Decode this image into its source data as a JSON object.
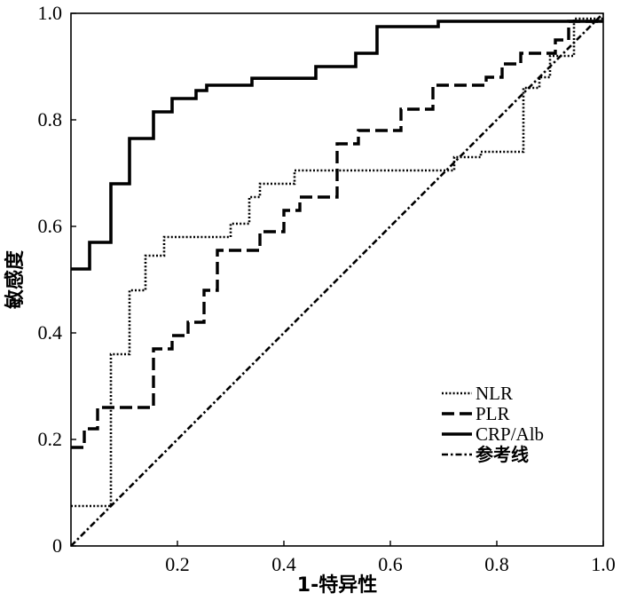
{
  "chart_data": {
    "type": "line",
    "title": "",
    "xlabel": "1-特异性",
    "ylabel": "敏感度",
    "xlim": [
      0,
      1
    ],
    "ylim": [
      0,
      1
    ],
    "x_ticks": [
      "0.2",
      "0.4",
      "0.6",
      "0.8",
      "1.0"
    ],
    "y_ticks": [
      "0",
      "0.2",
      "0.4",
      "0.6",
      "0.8",
      "1.0"
    ],
    "grid": false,
    "legend_position": "bottom-right",
    "series": [
      {
        "name": "NLR",
        "style": "dotted",
        "color": "#000000",
        "points": [
          [
            0,
            0.075
          ],
          [
            0.075,
            0.075
          ],
          [
            0.075,
            0.36
          ],
          [
            0.11,
            0.36
          ],
          [
            0.11,
            0.48
          ],
          [
            0.14,
            0.48
          ],
          [
            0.14,
            0.545
          ],
          [
            0.175,
            0.545
          ],
          [
            0.175,
            0.58
          ],
          [
            0.3,
            0.58
          ],
          [
            0.3,
            0.605
          ],
          [
            0.335,
            0.605
          ],
          [
            0.335,
            0.655
          ],
          [
            0.355,
            0.655
          ],
          [
            0.355,
            0.68
          ],
          [
            0.42,
            0.68
          ],
          [
            0.42,
            0.705
          ],
          [
            0.72,
            0.705
          ],
          [
            0.72,
            0.73
          ],
          [
            0.77,
            0.73
          ],
          [
            0.77,
            0.74
          ],
          [
            0.85,
            0.74
          ],
          [
            0.85,
            0.86
          ],
          [
            0.88,
            0.86
          ],
          [
            0.88,
            0.88
          ],
          [
            0.9,
            0.88
          ],
          [
            0.9,
            0.92
          ],
          [
            0.945,
            0.92
          ],
          [
            0.945,
            0.99
          ],
          [
            1.0,
            0.99
          ]
        ]
      },
      {
        "name": "PLR",
        "style": "dashed",
        "color": "#000000",
        "points": [
          [
            0,
            0.185
          ],
          [
            0.025,
            0.185
          ],
          [
            0.025,
            0.22
          ],
          [
            0.05,
            0.22
          ],
          [
            0.05,
            0.26
          ],
          [
            0.155,
            0.26
          ],
          [
            0.155,
            0.37
          ],
          [
            0.19,
            0.37
          ],
          [
            0.19,
            0.395
          ],
          [
            0.22,
            0.395
          ],
          [
            0.22,
            0.42
          ],
          [
            0.25,
            0.42
          ],
          [
            0.25,
            0.48
          ],
          [
            0.275,
            0.48
          ],
          [
            0.275,
            0.555
          ],
          [
            0.355,
            0.555
          ],
          [
            0.355,
            0.59
          ],
          [
            0.4,
            0.59
          ],
          [
            0.4,
            0.63
          ],
          [
            0.43,
            0.63
          ],
          [
            0.43,
            0.655
          ],
          [
            0.5,
            0.655
          ],
          [
            0.5,
            0.755
          ],
          [
            0.54,
            0.755
          ],
          [
            0.54,
            0.78
          ],
          [
            0.62,
            0.78
          ],
          [
            0.62,
            0.82
          ],
          [
            0.68,
            0.82
          ],
          [
            0.68,
            0.865
          ],
          [
            0.78,
            0.865
          ],
          [
            0.78,
            0.88
          ],
          [
            0.81,
            0.88
          ],
          [
            0.81,
            0.905
          ],
          [
            0.845,
            0.905
          ],
          [
            0.845,
            0.925
          ],
          [
            0.91,
            0.925
          ],
          [
            0.91,
            0.95
          ],
          [
            0.935,
            0.95
          ],
          [
            0.935,
            0.985
          ],
          [
            1.0,
            0.985
          ]
        ]
      },
      {
        "name": "CRP/Alb",
        "style": "solid",
        "color": "#000000",
        "points": [
          [
            0,
            0.52
          ],
          [
            0.035,
            0.52
          ],
          [
            0.035,
            0.57
          ],
          [
            0.075,
            0.57
          ],
          [
            0.075,
            0.68
          ],
          [
            0.11,
            0.68
          ],
          [
            0.11,
            0.765
          ],
          [
            0.155,
            0.765
          ],
          [
            0.155,
            0.815
          ],
          [
            0.19,
            0.815
          ],
          [
            0.19,
            0.84
          ],
          [
            0.235,
            0.84
          ],
          [
            0.235,
            0.855
          ],
          [
            0.255,
            0.855
          ],
          [
            0.255,
            0.865
          ],
          [
            0.34,
            0.865
          ],
          [
            0.34,
            0.878
          ],
          [
            0.46,
            0.878
          ],
          [
            0.46,
            0.9
          ],
          [
            0.535,
            0.9
          ],
          [
            0.535,
            0.925
          ],
          [
            0.575,
            0.925
          ],
          [
            0.575,
            0.975
          ],
          [
            0.69,
            0.975
          ],
          [
            0.69,
            0.985
          ],
          [
            1.0,
            0.985
          ]
        ]
      },
      {
        "name": "参考线",
        "style": "dash-dot",
        "color": "#000000",
        "points": [
          [
            0,
            0
          ],
          [
            1,
            1
          ]
        ]
      }
    ]
  }
}
